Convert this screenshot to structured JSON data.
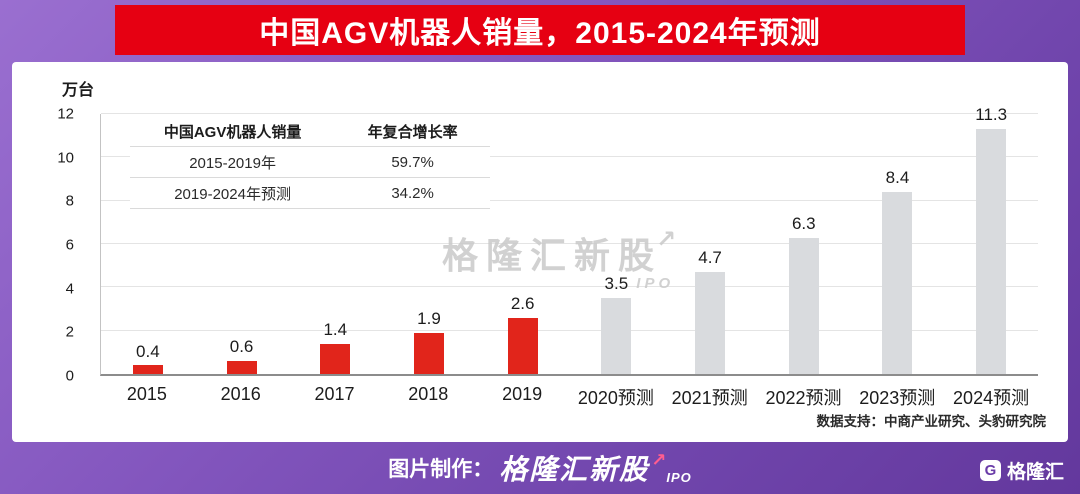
{
  "page": {
    "title": "中国AGV机器人销量，2015-2024年预测"
  },
  "colors": {
    "banner_red": "#e60012",
    "bar_actual_red": "#e1251b",
    "bar_forecast_gray": "#d9dbde",
    "background_purple": "#7f54bb",
    "footer_arrow_pink": "#ff5d8f"
  },
  "chart_data": {
    "type": "bar",
    "title": "中国AGV机器人销量，2015-2024年预测",
    "unit_label": "万台",
    "categories": [
      "2015",
      "2016",
      "2017",
      "2018",
      "2019",
      "2020预测",
      "2021预测",
      "2022预测",
      "2023预测",
      "2024预测"
    ],
    "values": [
      0.4,
      0.6,
      1.4,
      1.9,
      2.6,
      3.5,
      4.7,
      6.3,
      8.4,
      11.3
    ],
    "actual_count": 5,
    "actual_color": "#e1251b",
    "forecast_color": "#d9dbde",
    "xlabel": "",
    "ylabel": "万台",
    "ylim": [
      0,
      12
    ],
    "yticks": [
      0,
      2,
      4,
      6,
      8,
      10,
      12
    ],
    "grid": true,
    "legend_position": "none"
  },
  "inset_table": {
    "headers": [
      "中国AGV机器人销量",
      "年复合增长率"
    ],
    "rows": [
      {
        "label": "2015-2019年",
        "value": "59.7%"
      },
      {
        "label": "2019-2024年预测",
        "value": "34.2%"
      }
    ]
  },
  "watermark": {
    "brand": "格隆汇新股",
    "sub": "IPO"
  },
  "icons": {
    "trend_arrow": "↗"
  },
  "source_note": "数据支持：中商产业研究、头豹研究院",
  "footer": {
    "credit_label": "图片制作：",
    "brand": "格隆汇新股",
    "brand_sub": "IPO"
  },
  "logo": {
    "mark": "G",
    "text": "格隆汇"
  }
}
